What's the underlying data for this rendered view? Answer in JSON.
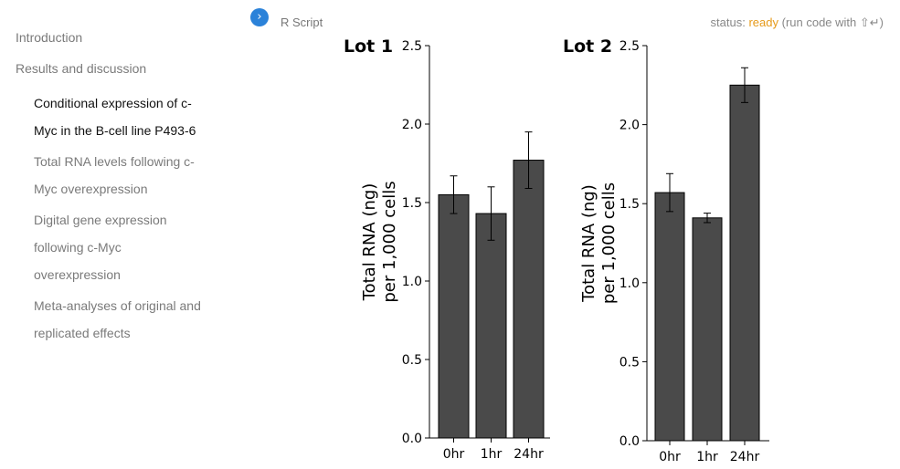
{
  "toc": {
    "items": [
      {
        "label": "Introduction",
        "active": false
      },
      {
        "label": "Results and discussion",
        "active": false
      }
    ],
    "subitems": [
      {
        "label": "Conditional expression of c-Myc in the B-cell line P493-6",
        "active": true
      },
      {
        "label": "Total RNA levels following c-Myc overexpression",
        "active": false
      },
      {
        "label": "Digital gene expression following c-Myc overexpression",
        "active": false
      },
      {
        "label": "Meta-analyses of original and replicated effects",
        "active": false
      }
    ]
  },
  "toolbar": {
    "run_icon": "chevron-right-icon",
    "script_label": "R Script",
    "status_prefix": "status: ",
    "status_value": "ready",
    "status_hint": " (run code with ⇧↵)",
    "status_color": "#e69a1a",
    "run_color": "#2b82d9"
  },
  "chart_data": [
    {
      "type": "bar",
      "title": "Lot 1",
      "categories": [
        "0hr",
        "1hr",
        "24hr"
      ],
      "values": [
        1.55,
        1.43,
        1.77
      ],
      "errors": [
        0.12,
        0.17,
        0.18
      ],
      "ylabel": "Total RNA (ng)\nper 1,000 cells",
      "ylim": [
        0,
        2.5
      ],
      "yticks": [
        "0.0",
        "0.5",
        "1.0",
        "1.5",
        "2.0",
        "2.5"
      ],
      "bar_color": "#4a4a4a",
      "grid": false
    },
    {
      "type": "bar",
      "title": "Lot 2",
      "categories": [
        "0hr",
        "1hr",
        "24hr"
      ],
      "values": [
        1.57,
        1.41,
        2.25
      ],
      "errors": [
        0.12,
        0.03,
        0.11
      ],
      "ylabel": "Total RNA (ng)\nper 1,000 cells",
      "ylim": [
        0,
        2.5
      ],
      "yticks": [
        "0.0",
        "0.5",
        "1.0",
        "1.5",
        "2.0",
        "2.5"
      ],
      "bar_color": "#4a4a4a",
      "grid": false
    }
  ]
}
